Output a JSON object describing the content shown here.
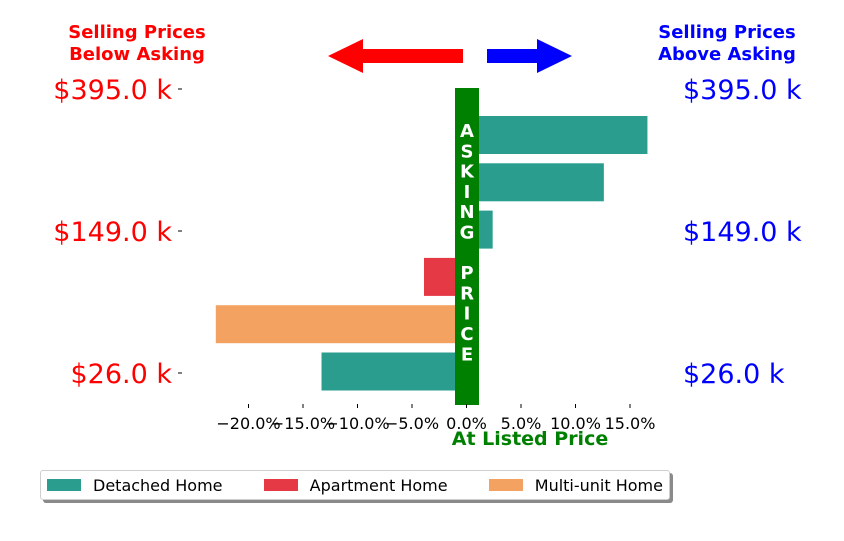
{
  "headers": {
    "left_line1": "Selling Prices",
    "left_line2": "Below Asking",
    "right_line1": "Selling Prices",
    "right_line2": "Above Asking"
  },
  "colors": {
    "below": "#ff0000",
    "above": "#0000ff",
    "asking_band": "#008000",
    "detached": "#2a9d8f",
    "apartment": "#e63946",
    "multiunit": "#f4a261"
  },
  "asking_band_text": [
    "A",
    "S",
    "K",
    "I",
    "N",
    "G",
    "",
    "P",
    "R",
    "I",
    "C",
    "E"
  ],
  "xlabel": "At Listed Price",
  "chart_data": {
    "type": "bar",
    "orientation": "horizontal",
    "x_unit": "percent difference from asking price",
    "xlim": [
      -23,
      17
    ],
    "x_ticks": [
      -20,
      -15,
      -10,
      -5,
      0,
      5,
      10,
      15
    ],
    "x_tick_labels": [
      "−20.0%",
      "−15.0%",
      "−10.0%",
      "−5.0%",
      "0.0%",
      "5.0%",
      "10.0%",
      "15.0%"
    ],
    "y_tick_labels": [
      "$395.0 k",
      "$149.0 k",
      "$26.0 k"
    ],
    "bars": [
      {
        "category": "Detached Home",
        "value": 16.6
      },
      {
        "category": "Detached Home",
        "value": 12.6
      },
      {
        "category": "Detached Home",
        "value": 2.4
      },
      {
        "category": "Apartment Home",
        "value": -3.9
      },
      {
        "category": "Multi-unit Home",
        "value": -23.0
      },
      {
        "category": "Detached Home",
        "value": -13.3
      }
    ],
    "legend": [
      "Detached Home",
      "Apartment Home",
      "Multi-unit Home"
    ],
    "legend_position": "bottom-left",
    "grid": false
  }
}
